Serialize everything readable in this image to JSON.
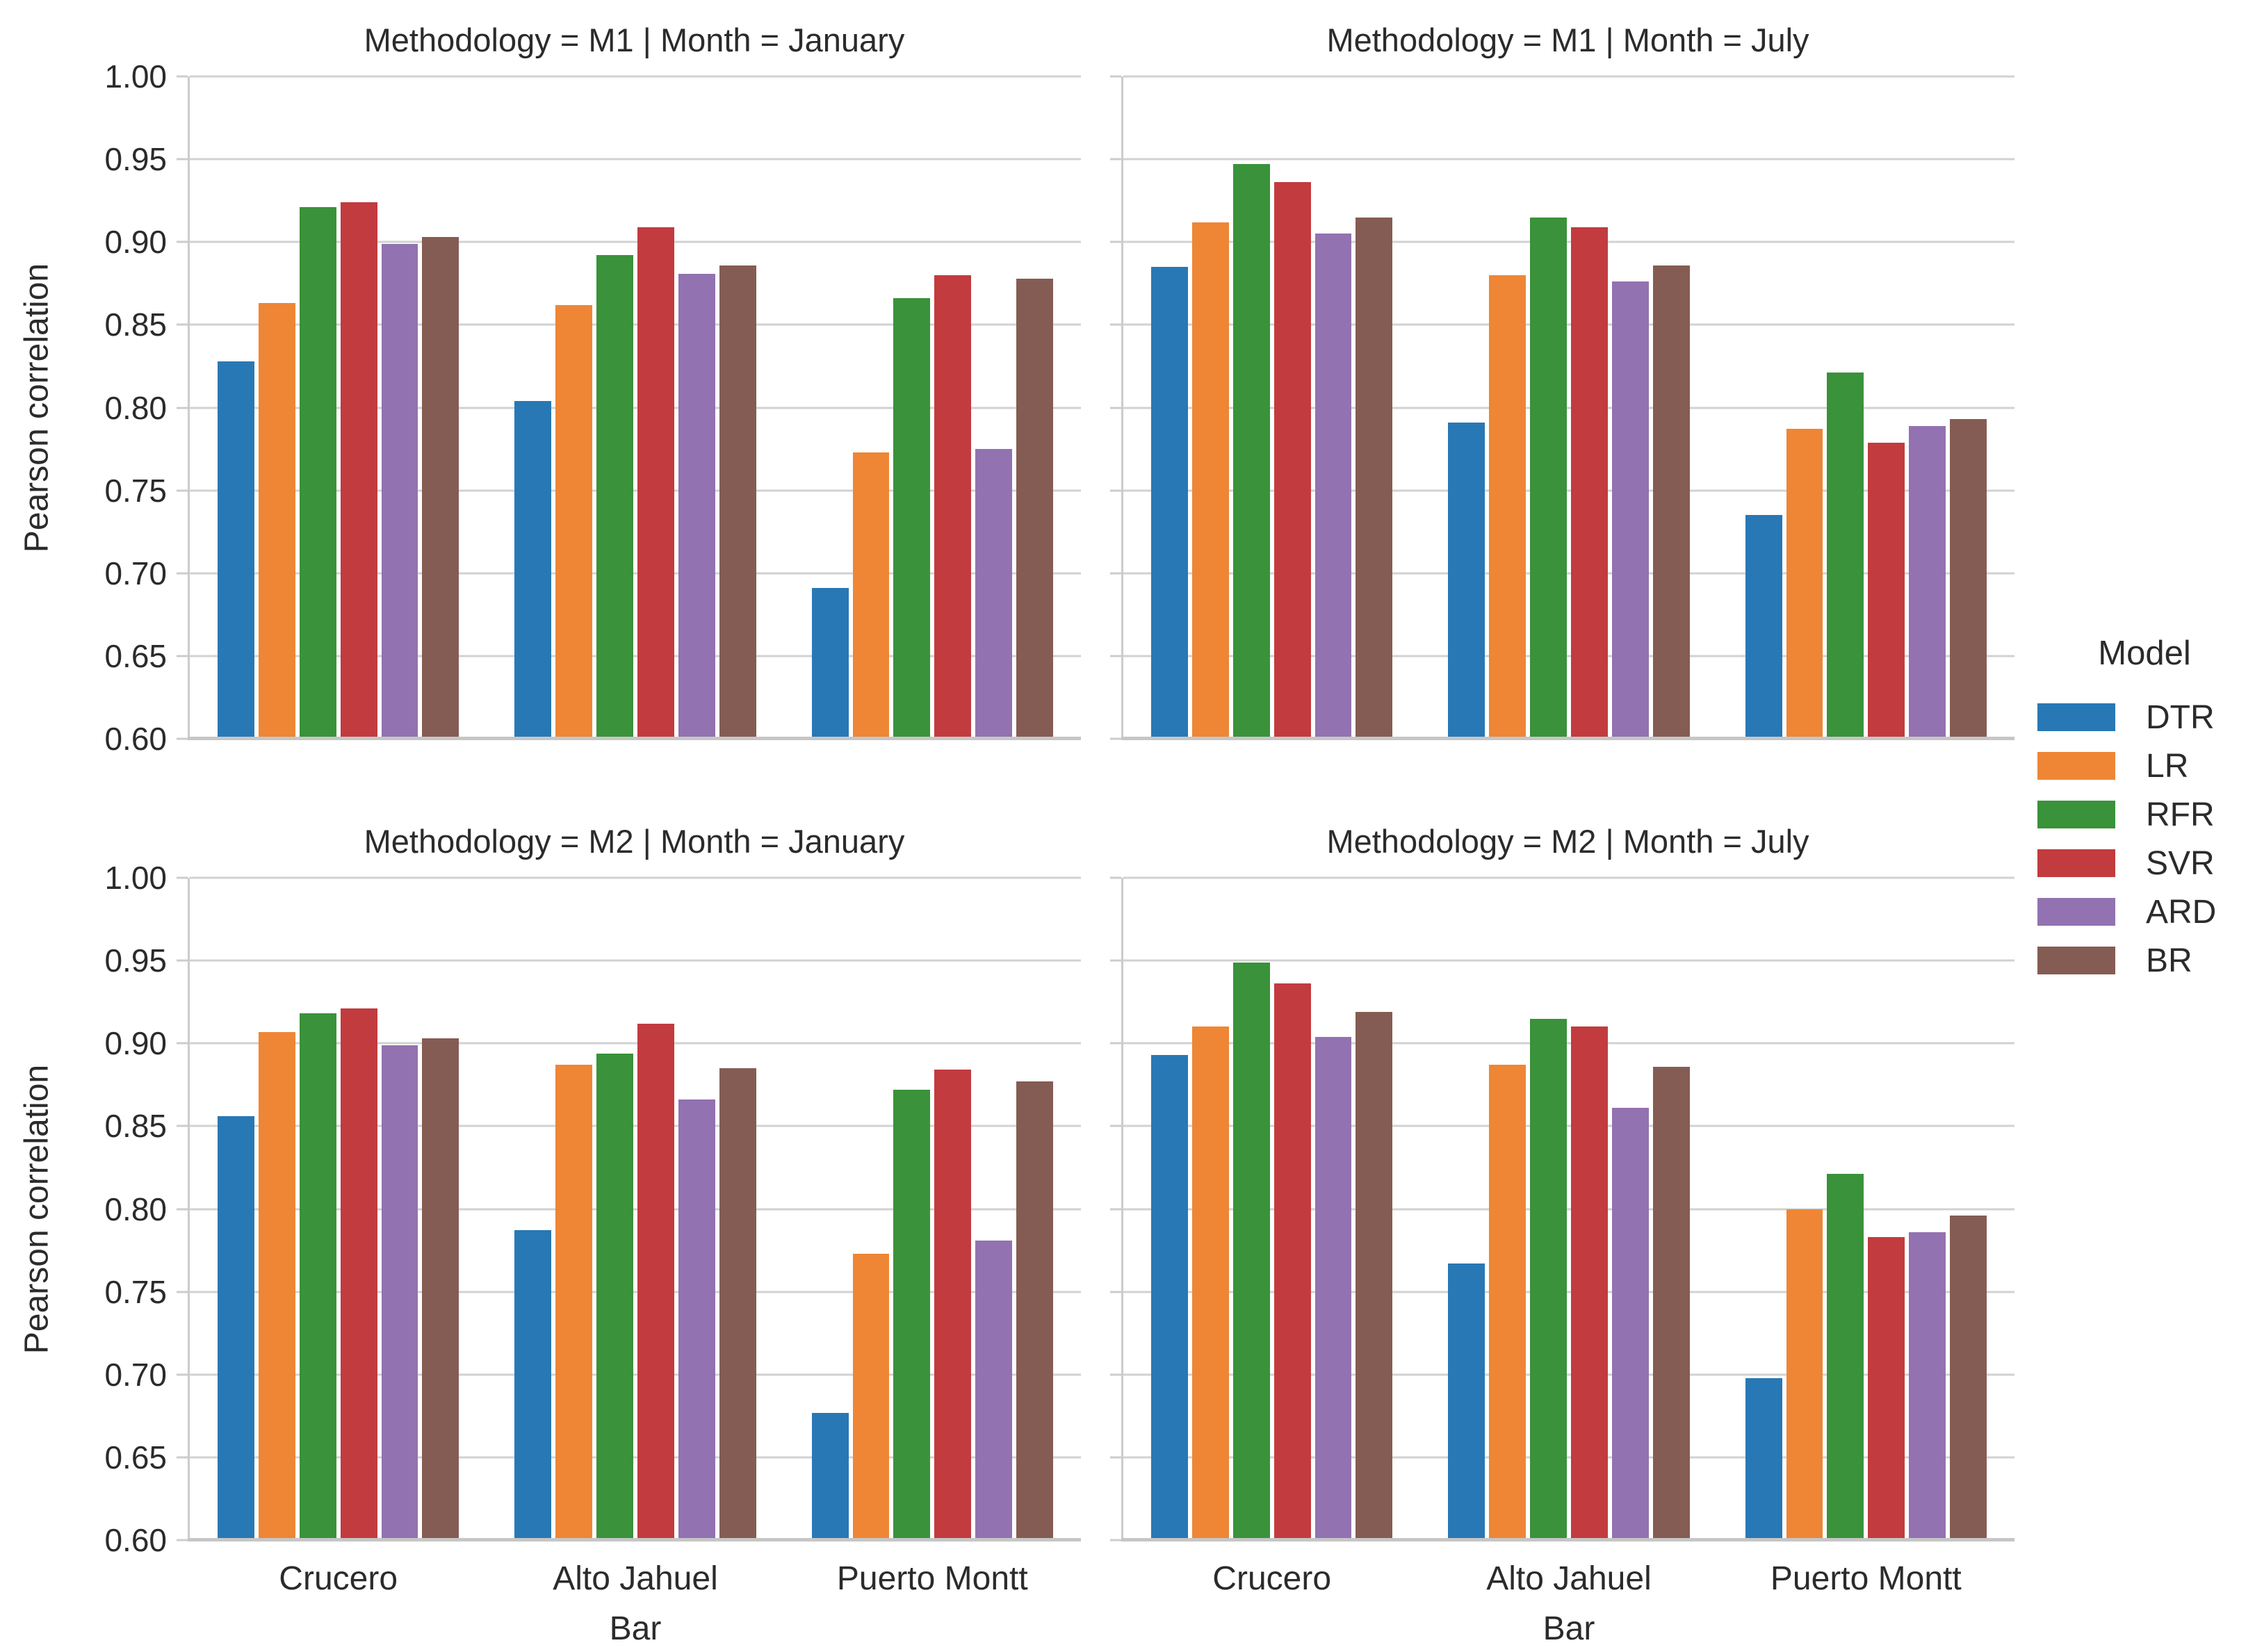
{
  "chart_data": {
    "type": "bar",
    "ylabel": "Pearson correlation",
    "xlabel": "Bar",
    "ylim": [
      0.6,
      1.0
    ],
    "yticks": [
      "1.00",
      "0.95",
      "0.90",
      "0.85",
      "0.80",
      "0.75",
      "0.70",
      "0.65",
      "0.60"
    ],
    "grid": "horizontal",
    "categories": [
      "Crucero",
      "Alto Jahuel",
      "Puerto Montt"
    ],
    "legend": {
      "title": "Model",
      "position": "right",
      "entries": [
        "DTR",
        "LR",
        "RFR",
        "SVR",
        "ARD",
        "BR"
      ]
    },
    "colors": [
      "#2878b5",
      "#ee8635",
      "#3a923a",
      "#c23b3e",
      "#9272b0",
      "#855c53"
    ],
    "facets": [
      {
        "title": "Methodology = M1 | Month = January",
        "values": [
          [
            0.828,
            0.863,
            0.921,
            0.924,
            0.899,
            0.903
          ],
          [
            0.804,
            0.862,
            0.892,
            0.909,
            0.881,
            0.886
          ],
          [
            0.691,
            0.773,
            0.866,
            0.88,
            0.775,
            0.878
          ]
        ]
      },
      {
        "title": "Methodology = M1 | Month = July",
        "values": [
          [
            0.885,
            0.912,
            0.947,
            0.936,
            0.905,
            0.915
          ],
          [
            0.791,
            0.88,
            0.915,
            0.909,
            0.876,
            0.886
          ],
          [
            0.735,
            0.787,
            0.821,
            0.779,
            0.789,
            0.793
          ]
        ]
      },
      {
        "title": "Methodology = M2 | Month = January",
        "values": [
          [
            0.856,
            0.907,
            0.918,
            0.921,
            0.899,
            0.903
          ],
          [
            0.787,
            0.887,
            0.894,
            0.912,
            0.866,
            0.885
          ],
          [
            0.677,
            0.773,
            0.872,
            0.884,
            0.781,
            0.877
          ]
        ]
      },
      {
        "title": "Methodology = M2 | Month = July",
        "values": [
          [
            0.893,
            0.91,
            0.949,
            0.936,
            0.904,
            0.919
          ],
          [
            0.767,
            0.887,
            0.915,
            0.91,
            0.861,
            0.886
          ],
          [
            0.698,
            0.8,
            0.821,
            0.783,
            0.786,
            0.796
          ]
        ]
      }
    ]
  }
}
